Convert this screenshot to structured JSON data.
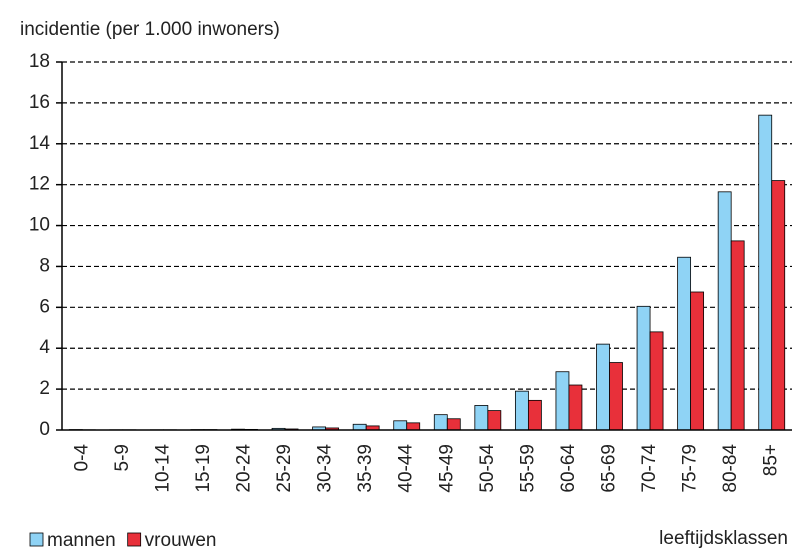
{
  "chart_data": {
    "type": "bar",
    "title": "incidentie (per 1.000 inwoners)",
    "x_label": "leeftijdsklassen",
    "categories": [
      "0-4",
      "5-9",
      "10-14",
      "15-19",
      "20-24",
      "25-29",
      "30-34",
      "35-39",
      "40-44",
      "45-49",
      "50-54",
      "55-59",
      "60-64",
      "65-69",
      "70-74",
      "75-79",
      "80-84",
      "85+"
    ],
    "series": [
      {
        "name": "mannen",
        "color": "#8fd3f5",
        "values": [
          0.02,
          0.01,
          0.01,
          0.02,
          0.04,
          0.08,
          0.15,
          0.28,
          0.45,
          0.75,
          1.2,
          1.9,
          2.85,
          4.2,
          6.05,
          8.45,
          11.65,
          15.4
        ]
      },
      {
        "name": "vrouwen",
        "color": "#e8303a",
        "values": [
          0.01,
          0.01,
          0.01,
          0.02,
          0.03,
          0.05,
          0.1,
          0.2,
          0.35,
          0.55,
          0.95,
          1.45,
          2.2,
          3.3,
          4.8,
          6.75,
          9.25,
          12.2
        ]
      }
    ],
    "ylim": [
      0,
      18
    ],
    "yticks": [
      0,
      2,
      4,
      6,
      8,
      10,
      12,
      14,
      16,
      18
    ],
    "grid": true,
    "legend": "bottom-left"
  }
}
